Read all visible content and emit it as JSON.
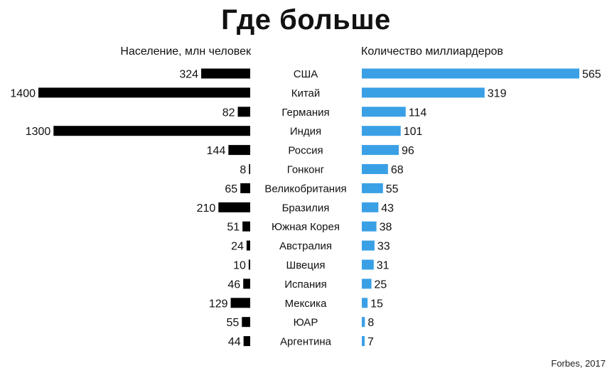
{
  "title": "Где больше",
  "source": "Forbes, 2017",
  "colors": {
    "population_bar": "#000000",
    "billionaires_bar": "#3aa0e6"
  },
  "chart_data": {
    "type": "bar",
    "layout": "butterfly",
    "categories": [
      "США",
      "Китай",
      "Германия",
      "Индия",
      "Россия",
      "Гонконг",
      "Великобритания",
      "Бразилия",
      "Южная Корея",
      "Австралия",
      "Швеция",
      "Испания",
      "Мексика",
      "ЮАР",
      "Аргентина"
    ],
    "series": [
      {
        "name": "Население, млн человек",
        "side": "left",
        "values": [
          324,
          1400,
          82,
          1300,
          144,
          8,
          65,
          210,
          51,
          24,
          10,
          46,
          129,
          55,
          44
        ]
      },
      {
        "name": "Количество миллиардеров",
        "side": "right",
        "values": [
          565,
          319,
          114,
          101,
          96,
          68,
          55,
          43,
          38,
          33,
          31,
          25,
          15,
          8,
          7
        ]
      }
    ],
    "grid": false,
    "legend": "none"
  }
}
